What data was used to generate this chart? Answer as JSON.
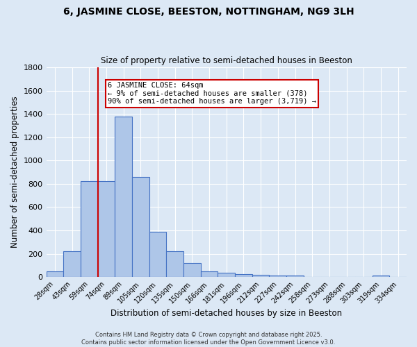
{
  "title1": "6, JASMINE CLOSE, BEESTON, NOTTINGHAM, NG9 3LH",
  "title2": "Size of property relative to semi-detached houses in Beeston",
  "xlabel": "Distribution of semi-detached houses by size in Beeston",
  "ylabel": "Number of semi-detached properties",
  "bins": [
    "28sqm",
    "43sqm",
    "59sqm",
    "74sqm",
    "89sqm",
    "105sqm",
    "120sqm",
    "135sqm",
    "150sqm",
    "166sqm",
    "181sqm",
    "196sqm",
    "212sqm",
    "227sqm",
    "242sqm",
    "258sqm",
    "273sqm",
    "288sqm",
    "303sqm",
    "319sqm",
    "334sqm"
  ],
  "values": [
    50,
    220,
    820,
    820,
    1380,
    860,
    390,
    220,
    120,
    50,
    35,
    25,
    20,
    13,
    10,
    3,
    2,
    1,
    0,
    15,
    1
  ],
  "bar_color": "#aec6e8",
  "bar_edge_color": "#4472c4",
  "vline_x": 2.5,
  "annotation_text": "6 JASMINE CLOSE: 64sqm\n← 9% of semi-detached houses are smaller (378)\n90% of semi-detached houses are larger (3,719) →",
  "annotation_box_color": "#ffffff",
  "annotation_box_edge": "#cc0000",
  "vline_color": "#cc0000",
  "footer": "Contains HM Land Registry data © Crown copyright and database right 2025.\nContains public sector information licensed under the Open Government Licence v3.0.",
  "bg_color": "#dce8f5",
  "ylim": [
    0,
    1800
  ],
  "yticks": [
    0,
    200,
    400,
    600,
    800,
    1000,
    1200,
    1400,
    1600,
    1800
  ]
}
